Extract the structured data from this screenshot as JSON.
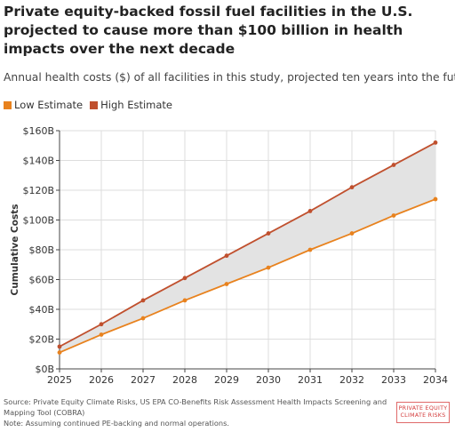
{
  "title": "Private equity-backed fossil fuel facilities in the U.S. projected to cause more than $100 billion in health impacts over the next decade",
  "subtitle": "Annual health costs ($) of all facilities in this study, projected ten years into the future",
  "colors": {
    "low": "#E8821E",
    "high": "#C0502E",
    "band": "#E3E3E3",
    "grid": "#DDDDDD",
    "axis": "#444444"
  },
  "chart_data": {
    "type": "line",
    "x": [
      2025,
      2026,
      2027,
      2028,
      2029,
      2030,
      2031,
      2032,
      2033,
      2034
    ],
    "series": [
      {
        "name": "Low Estimate",
        "values": [
          11,
          23,
          34,
          46,
          57,
          68,
          80,
          91,
          103,
          114
        ]
      },
      {
        "name": "High Estimate",
        "values": [
          15,
          30,
          46,
          61,
          76,
          91,
          106,
          122,
          137,
          152
        ]
      }
    ],
    "ylabel": "Cumulative Costs",
    "xlabel": "",
    "ylim": [
      0,
      160
    ],
    "yticks": [
      0,
      20,
      40,
      60,
      80,
      100,
      120,
      140,
      160
    ],
    "ytick_labels": [
      "$0B",
      "$20B",
      "$40B",
      "$60B",
      "$80B",
      "$100B",
      "$120B",
      "$140B",
      "$160B"
    ],
    "xtick_labels": [
      "2025",
      "2026",
      "2027",
      "2028",
      "2029",
      "2030",
      "2031",
      "2032",
      "2033",
      "2034"
    ],
    "grid": true,
    "legend_position": "top-left",
    "shaded_band_between_series": true
  },
  "footer": {
    "source": "Source: Private Equity Climate Risks, US EPA CO-Benefits Risk Assessment Health Impacts Screening and Mapping Tool (COBRA)",
    "note": "Note: Assuming continued PE-backing and normal operations."
  },
  "logo": {
    "line1": "PRIVATE EQUITY",
    "line2": "CLIMATE RISKS"
  }
}
